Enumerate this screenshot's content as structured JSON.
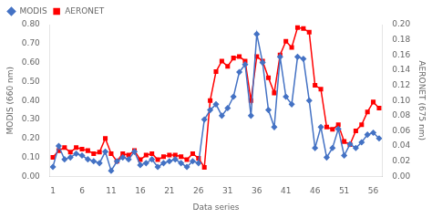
{
  "chart_data": {
    "type": "line",
    "xlabel": "Data series",
    "ylabel": "MODIS (660 nm)",
    "y2label": "AERONET (675 nm)",
    "x": [
      1,
      2,
      3,
      4,
      5,
      6,
      7,
      8,
      9,
      10,
      11,
      12,
      13,
      14,
      15,
      16,
      17,
      18,
      19,
      20,
      21,
      22,
      23,
      24,
      25,
      26,
      27,
      28,
      29,
      30,
      31,
      32,
      33,
      34,
      35,
      36,
      37,
      38,
      39,
      40,
      41,
      42,
      43,
      44,
      45,
      46,
      47,
      48,
      49,
      50,
      51,
      52,
      53,
      54,
      55,
      56,
      57
    ],
    "series": [
      {
        "name": "MODIS",
        "color": "#4472C4",
        "marker": "diamond",
        "values": [
          0.05,
          0.16,
          0.09,
          0.1,
          0.12,
          0.11,
          0.09,
          0.08,
          0.07,
          0.13,
          0.03,
          0.08,
          0.1,
          0.09,
          0.13,
          0.06,
          0.07,
          0.09,
          0.05,
          0.07,
          0.08,
          0.09,
          0.07,
          0.05,
          0.08,
          0.07,
          0.3,
          0.35,
          0.38,
          0.32,
          0.36,
          0.42,
          0.55,
          0.59,
          0.32,
          0.75,
          0.6,
          0.35,
          0.26,
          0.63,
          0.42,
          0.38,
          0.63,
          0.62,
          0.4,
          0.15,
          0.26,
          0.1,
          0.15,
          0.25,
          0.11,
          0.17,
          0.15,
          0.18,
          0.22,
          0.23,
          0.2
        ]
      },
      {
        "name": "AERONET",
        "color": "#FF0000",
        "marker": "square",
        "axis": "y2",
        "values": [
          0.025,
          0.034,
          0.038,
          0.032,
          0.038,
          0.036,
          0.034,
          0.03,
          0.032,
          0.05,
          0.03,
          0.02,
          0.03,
          0.028,
          0.034,
          0.022,
          0.028,
          0.03,
          0.022,
          0.026,
          0.028,
          0.028,
          0.026,
          0.022,
          0.03,
          0.024,
          0.012,
          0.1,
          0.138,
          0.152,
          0.145,
          0.156,
          0.158,
          0.152,
          0.1,
          0.158,
          0.152,
          0.13,
          0.11,
          0.16,
          0.178,
          0.17,
          0.196,
          0.195,
          0.19,
          0.12,
          0.115,
          0.065,
          0.062,
          0.068,
          0.046,
          0.042,
          0.06,
          0.068,
          0.085,
          0.098,
          0.09
        ]
      }
    ],
    "xlim": [
      0.5,
      57.5
    ],
    "xticks": [
      1,
      6,
      11,
      16,
      21,
      26,
      31,
      36,
      41,
      46,
      51,
      56
    ],
    "ylim": [
      0.0,
      0.8
    ],
    "yticks": [
      {
        "value": 0.0,
        "label": "0.00"
      },
      {
        "value": 0.1,
        "label": "0.10"
      },
      {
        "value": 0.2,
        "label": "0.20"
      },
      {
        "value": 0.3,
        "label": "0.30"
      },
      {
        "value": 0.4,
        "label": "0.40"
      },
      {
        "value": 0.5,
        "label": "0.50"
      },
      {
        "value": 0.6,
        "label": "0.60"
      },
      {
        "value": 0.7,
        "label": "0.70"
      },
      {
        "value": 0.8,
        "label": "0.80"
      }
    ],
    "y2lim": [
      0.0,
      0.2
    ],
    "y2ticks": [
      {
        "value": 0.0,
        "label": "0.00"
      },
      0.02,
      0.04,
      0.06,
      0.08,
      {
        "value": 0.1,
        "label": "0.10"
      },
      0.12,
      0.14,
      0.16,
      0.18,
      {
        "value": 0.2,
        "label": "0.20"
      }
    ],
    "grid": false,
    "legend": "upper left"
  }
}
